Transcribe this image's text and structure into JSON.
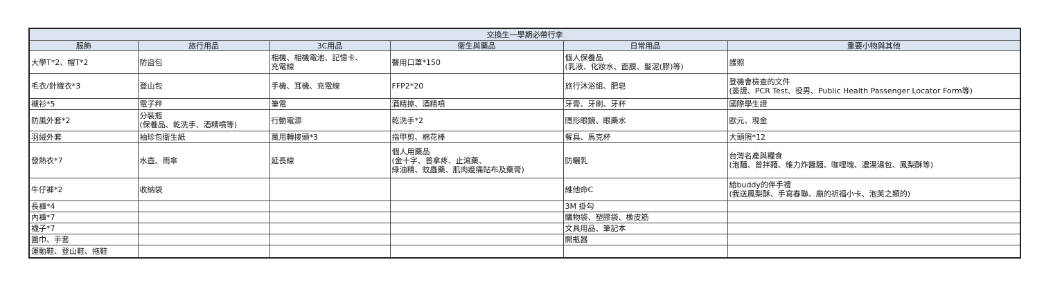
{
  "sheet": {
    "title": "交換生一學期必帶行李",
    "header_color": "#dbe5f1",
    "columns": [
      "服飾",
      "旅行用品",
      "3C用品",
      "衛生與藥品",
      "日常用品",
      "重要小物與其他"
    ],
    "rows": [
      [
        "大學T*2、帽T*2",
        "防盜包",
        "相機、相機電池、記憶卡、\n充電線",
        "醫用口罩*150",
        "個人保養品\n(乳液、化妝水、面膜、髮泥(膠)等)",
        "護照"
      ],
      [
        "毛衣/針織衣*3",
        "登山包",
        "手機、耳機、充電線",
        "FFP2*20",
        "旅行沐浴組、肥皂",
        "登機會檢查的文件\n(簽證、PCR Test、役男、Public Health Passenger Locator Form等)"
      ],
      [
        "襯衫*5",
        "電子秤",
        "筆電",
        "酒精擦、酒精噴",
        "牙膏、牙刷、牙杯",
        "國際學生證"
      ],
      [
        "防風外套*2",
        "分裝瓶\n(保養品、乾洗手、酒精噴等)",
        "行動電源",
        "乾洗手*2",
        "隱形眼鏡、眼藥水",
        "歐元、現金"
      ],
      [
        "羽絨外套",
        "袖珍包衛生紙",
        "萬用轉接頭*3",
        "指甲剪、棉花棒",
        "餐具、馬克杯",
        "大頭照*12"
      ],
      [
        "發熱衣*7",
        "水壺、雨傘",
        "延長線",
        "個人用藥品\n(金十字、普拿疼、止瀉藥、\n綠油精、蚊蟲藥、肌肉痠痛貼布及藥膏)",
        "防曬乳",
        "台灣名產與糧食\n(泡麵、曾拌麵、維力炸醬麵、咖哩塊、濃湯湯包、鳳梨酥等)"
      ],
      [
        "牛仔褲*2",
        "收納袋",
        "",
        "",
        "維他命C",
        "給buddy的伴手禮\n(我送鳳梨酥、手寫春聯、廟的祈福小卡、泡芙之類的)"
      ],
      [
        "長褲*4",
        "",
        "",
        "",
        "3M 掛勾",
        ""
      ],
      [
        "內褲*7",
        "",
        "",
        "",
        "購物袋、塑膠袋、橡皮筋",
        ""
      ],
      [
        "襪子*7",
        "",
        "",
        "",
        "文具用品、筆記本",
        ""
      ],
      [
        "圍巾、手套",
        "",
        "",
        "",
        "開瓶器",
        ""
      ],
      [
        "運動鞋、登山鞋、拖鞋",
        "",
        "",
        "",
        "",
        ""
      ]
    ]
  }
}
